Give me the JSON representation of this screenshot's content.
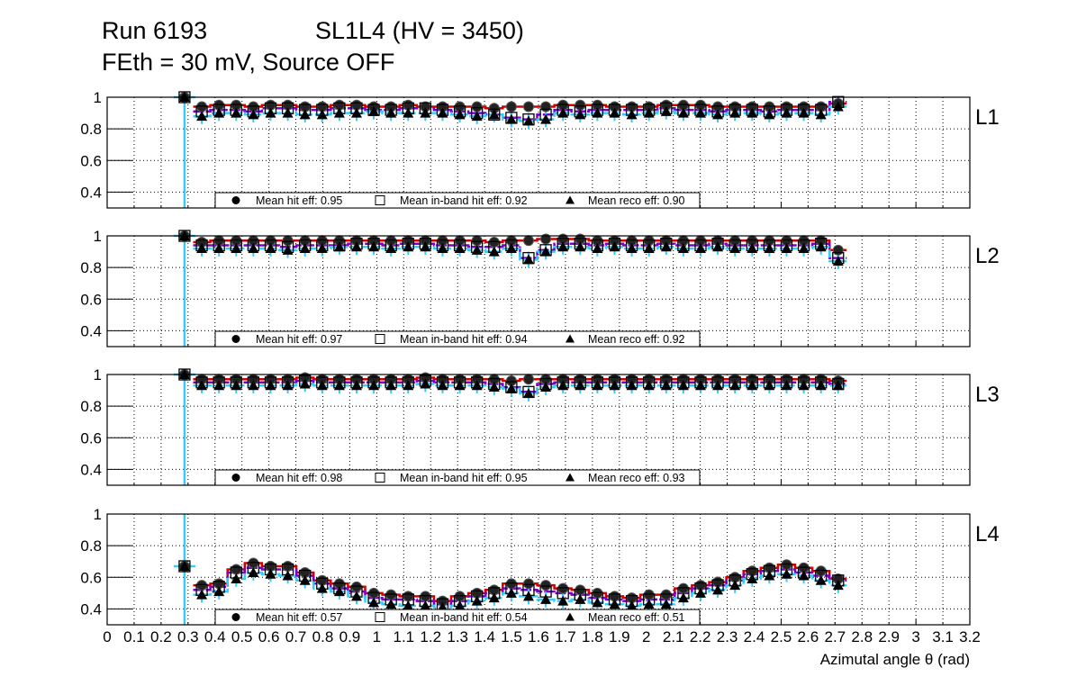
{
  "title": {
    "run": "Run 6193",
    "chamber": "SL1L4 (HV = 3450)",
    "line2": "FEth = 30 mV, Source OFF"
  },
  "xlabel": "Azimutal angle θ (rad)",
  "x_ticks": [
    "0",
    "0.1",
    "0.2",
    "0.3",
    "0.4",
    "0.5",
    "0.6",
    "0.7",
    "0.8",
    "0.9",
    "1",
    "1.1",
    "1.2",
    "1.3",
    "1.4",
    "1.5",
    "1.6",
    "1.7",
    "1.8",
    "1.9",
    "2",
    "2.1",
    "2.2",
    "2.3",
    "2.4",
    "2.5",
    "2.6",
    "2.7",
    "2.8",
    "2.9",
    "3",
    "3.1",
    "3.2"
  ],
  "y_ticks": [
    "0.4",
    "0.6",
    "0.8",
    "1"
  ],
  "colors": {
    "hit": "#d40000",
    "inband": "#7a00d0",
    "reco": "#33ccff",
    "marker": "#000000"
  },
  "chart_data": [
    {
      "type": "scatter",
      "panel": "L1",
      "xlim": [
        0,
        3.2
      ],
      "ylim": [
        0.3,
        1.0
      ],
      "grid": true,
      "legend": "bottom",
      "first_point": {
        "x": 0.287,
        "hit": 1.0,
        "inband": 1.0,
        "reco": 1.0
      },
      "x_start": 0.351,
      "x_step": 0.0638,
      "series": [
        {
          "name": "Mean hit  eff: 0.95",
          "key": "hit",
          "values": [
            0.94,
            0.95,
            0.95,
            0.94,
            0.95,
            0.95,
            0.94,
            0.94,
            0.95,
            0.95,
            0.94,
            0.94,
            0.95,
            0.94,
            0.94,
            0.94,
            0.94,
            0.93,
            0.94,
            0.94,
            0.94,
            0.95,
            0.95,
            0.95,
            0.94,
            0.94,
            0.94,
            0.95,
            0.95,
            0.95,
            0.94,
            0.94,
            0.94,
            0.94,
            0.94,
            0.94,
            0.94,
            0.96
          ]
        },
        {
          "name": "Mean in-band hit eff: 0.92",
          "key": "inband",
          "values": [
            0.91,
            0.92,
            0.92,
            0.91,
            0.93,
            0.93,
            0.92,
            0.92,
            0.93,
            0.93,
            0.92,
            0.92,
            0.93,
            0.93,
            0.92,
            0.91,
            0.9,
            0.89,
            0.87,
            0.86,
            0.89,
            0.92,
            0.91,
            0.92,
            0.92,
            0.92,
            0.92,
            0.93,
            0.92,
            0.92,
            0.91,
            0.92,
            0.92,
            0.91,
            0.92,
            0.92,
            0.92,
            0.97
          ]
        },
        {
          "name": "Mean reco eff: 0.90",
          "key": "reco",
          "values": [
            0.88,
            0.9,
            0.9,
            0.89,
            0.9,
            0.9,
            0.89,
            0.89,
            0.9,
            0.9,
            0.91,
            0.9,
            0.9,
            0.9,
            0.9,
            0.89,
            0.88,
            0.89,
            0.86,
            0.85,
            0.86,
            0.9,
            0.89,
            0.9,
            0.9,
            0.89,
            0.9,
            0.91,
            0.9,
            0.9,
            0.89,
            0.9,
            0.9,
            0.89,
            0.9,
            0.9,
            0.89,
            0.94
          ]
        }
      ]
    },
    {
      "type": "scatter",
      "panel": "L2",
      "xlim": [
        0,
        3.2
      ],
      "ylim": [
        0.3,
        1.0
      ],
      "grid": true,
      "legend": "bottom",
      "first_point": {
        "x": 0.287,
        "hit": 1.0,
        "inband": 1.0,
        "reco": 1.0
      },
      "x_start": 0.351,
      "x_step": 0.0638,
      "series": [
        {
          "name": "Mean hit  eff: 0.97",
          "key": "hit",
          "values": [
            0.96,
            0.97,
            0.97,
            0.97,
            0.97,
            0.97,
            0.97,
            0.97,
            0.97,
            0.97,
            0.97,
            0.97,
            0.97,
            0.97,
            0.97,
            0.97,
            0.97,
            0.96,
            0.97,
            0.97,
            0.98,
            0.98,
            0.98,
            0.97,
            0.97,
            0.97,
            0.97,
            0.97,
            0.97,
            0.97,
            0.97,
            0.97,
            0.97,
            0.97,
            0.97,
            0.97,
            0.97,
            0.91
          ]
        },
        {
          "name": "Mean in-band hit eff: 0.94",
          "key": "inband",
          "values": [
            0.94,
            0.94,
            0.94,
            0.94,
            0.94,
            0.93,
            0.94,
            0.94,
            0.94,
            0.95,
            0.95,
            0.94,
            0.95,
            0.95,
            0.94,
            0.94,
            0.93,
            0.93,
            0.94,
            0.86,
            0.91,
            0.95,
            0.95,
            0.94,
            0.95,
            0.94,
            0.94,
            0.95,
            0.94,
            0.94,
            0.95,
            0.94,
            0.94,
            0.94,
            0.94,
            0.94,
            0.95,
            0.86
          ]
        },
        {
          "name": "Mean reco eff: 0.92",
          "key": "reco",
          "values": [
            0.92,
            0.92,
            0.92,
            0.92,
            0.92,
            0.91,
            0.92,
            0.92,
            0.93,
            0.93,
            0.93,
            0.92,
            0.93,
            0.93,
            0.92,
            0.92,
            0.91,
            0.9,
            0.92,
            0.85,
            0.9,
            0.93,
            0.93,
            0.92,
            0.93,
            0.92,
            0.92,
            0.93,
            0.92,
            0.92,
            0.93,
            0.92,
            0.92,
            0.92,
            0.92,
            0.92,
            0.93,
            0.84
          ]
        }
      ]
    },
    {
      "type": "scatter",
      "panel": "L3",
      "xlim": [
        0,
        3.2
      ],
      "ylim": [
        0.3,
        1.0
      ],
      "grid": true,
      "legend": "bottom",
      "first_point": {
        "x": 0.287,
        "hit": 1.0,
        "inband": 1.0,
        "reco": 1.0
      },
      "x_start": 0.351,
      "x_step": 0.0638,
      "series": [
        {
          "name": "Mean hit  eff: 0.98",
          "key": "hit",
          "values": [
            0.97,
            0.97,
            0.97,
            0.97,
            0.97,
            0.97,
            0.98,
            0.97,
            0.97,
            0.97,
            0.97,
            0.97,
            0.97,
            0.98,
            0.97,
            0.97,
            0.97,
            0.97,
            0.96,
            0.97,
            0.97,
            0.97,
            0.97,
            0.97,
            0.97,
            0.97,
            0.97,
            0.97,
            0.97,
            0.97,
            0.97,
            0.97,
            0.97,
            0.97,
            0.97,
            0.97,
            0.97,
            0.96
          ]
        },
        {
          "name": "Mean in-band hit eff: 0.95",
          "key": "inband",
          "values": [
            0.95,
            0.95,
            0.95,
            0.95,
            0.95,
            0.95,
            0.96,
            0.95,
            0.95,
            0.95,
            0.95,
            0.95,
            0.95,
            0.96,
            0.95,
            0.95,
            0.95,
            0.94,
            0.92,
            0.89,
            0.94,
            0.95,
            0.95,
            0.95,
            0.95,
            0.95,
            0.95,
            0.95,
            0.95,
            0.95,
            0.95,
            0.95,
            0.95,
            0.95,
            0.95,
            0.95,
            0.95,
            0.94
          ]
        },
        {
          "name": "Mean reco eff: 0.93",
          "key": "reco",
          "values": [
            0.93,
            0.93,
            0.93,
            0.93,
            0.93,
            0.93,
            0.94,
            0.93,
            0.93,
            0.93,
            0.93,
            0.93,
            0.93,
            0.94,
            0.93,
            0.93,
            0.93,
            0.92,
            0.91,
            0.88,
            0.92,
            0.93,
            0.93,
            0.93,
            0.93,
            0.93,
            0.93,
            0.93,
            0.93,
            0.93,
            0.93,
            0.93,
            0.93,
            0.93,
            0.93,
            0.93,
            0.93,
            0.93
          ]
        }
      ]
    },
    {
      "type": "scatter",
      "panel": "L4",
      "xlim": [
        0,
        3.2
      ],
      "ylim": [
        0.3,
        1.0
      ],
      "grid": true,
      "legend": "bottom",
      "first_point": {
        "x": 0.287,
        "hit": 0.67,
        "inband": 0.67,
        "reco": 0.67
      },
      "x_start": 0.351,
      "x_step": 0.0638,
      "series": [
        {
          "name": "Mean hit  eff: 0.57",
          "key": "hit",
          "values": [
            0.55,
            0.56,
            0.65,
            0.69,
            0.67,
            0.67,
            0.63,
            0.58,
            0.56,
            0.54,
            0.5,
            0.49,
            0.48,
            0.48,
            0.45,
            0.48,
            0.5,
            0.52,
            0.56,
            0.56,
            0.55,
            0.53,
            0.52,
            0.5,
            0.48,
            0.47,
            0.49,
            0.49,
            0.53,
            0.55,
            0.57,
            0.6,
            0.64,
            0.66,
            0.68,
            0.66,
            0.64,
            0.59
          ]
        },
        {
          "name": "Mean in-band hit eff: 0.54",
          "key": "inband",
          "values": [
            0.52,
            0.54,
            0.63,
            0.66,
            0.65,
            0.65,
            0.61,
            0.56,
            0.53,
            0.51,
            0.47,
            0.46,
            0.46,
            0.45,
            0.43,
            0.45,
            0.48,
            0.5,
            0.53,
            0.52,
            0.51,
            0.5,
            0.49,
            0.47,
            0.46,
            0.45,
            0.46,
            0.46,
            0.5,
            0.53,
            0.55,
            0.58,
            0.62,
            0.64,
            0.65,
            0.63,
            0.61,
            0.58
          ]
        },
        {
          "name": "Mean reco eff: 0.51",
          "key": "reco",
          "values": [
            0.49,
            0.51,
            0.59,
            0.63,
            0.62,
            0.61,
            0.58,
            0.53,
            0.51,
            0.48,
            0.44,
            0.43,
            0.42,
            0.42,
            0.41,
            0.42,
            0.45,
            0.47,
            0.5,
            0.48,
            0.46,
            0.45,
            0.46,
            0.44,
            0.43,
            0.42,
            0.43,
            0.43,
            0.47,
            0.5,
            0.52,
            0.55,
            0.59,
            0.61,
            0.62,
            0.61,
            0.58,
            0.55
          ]
        }
      ]
    }
  ]
}
